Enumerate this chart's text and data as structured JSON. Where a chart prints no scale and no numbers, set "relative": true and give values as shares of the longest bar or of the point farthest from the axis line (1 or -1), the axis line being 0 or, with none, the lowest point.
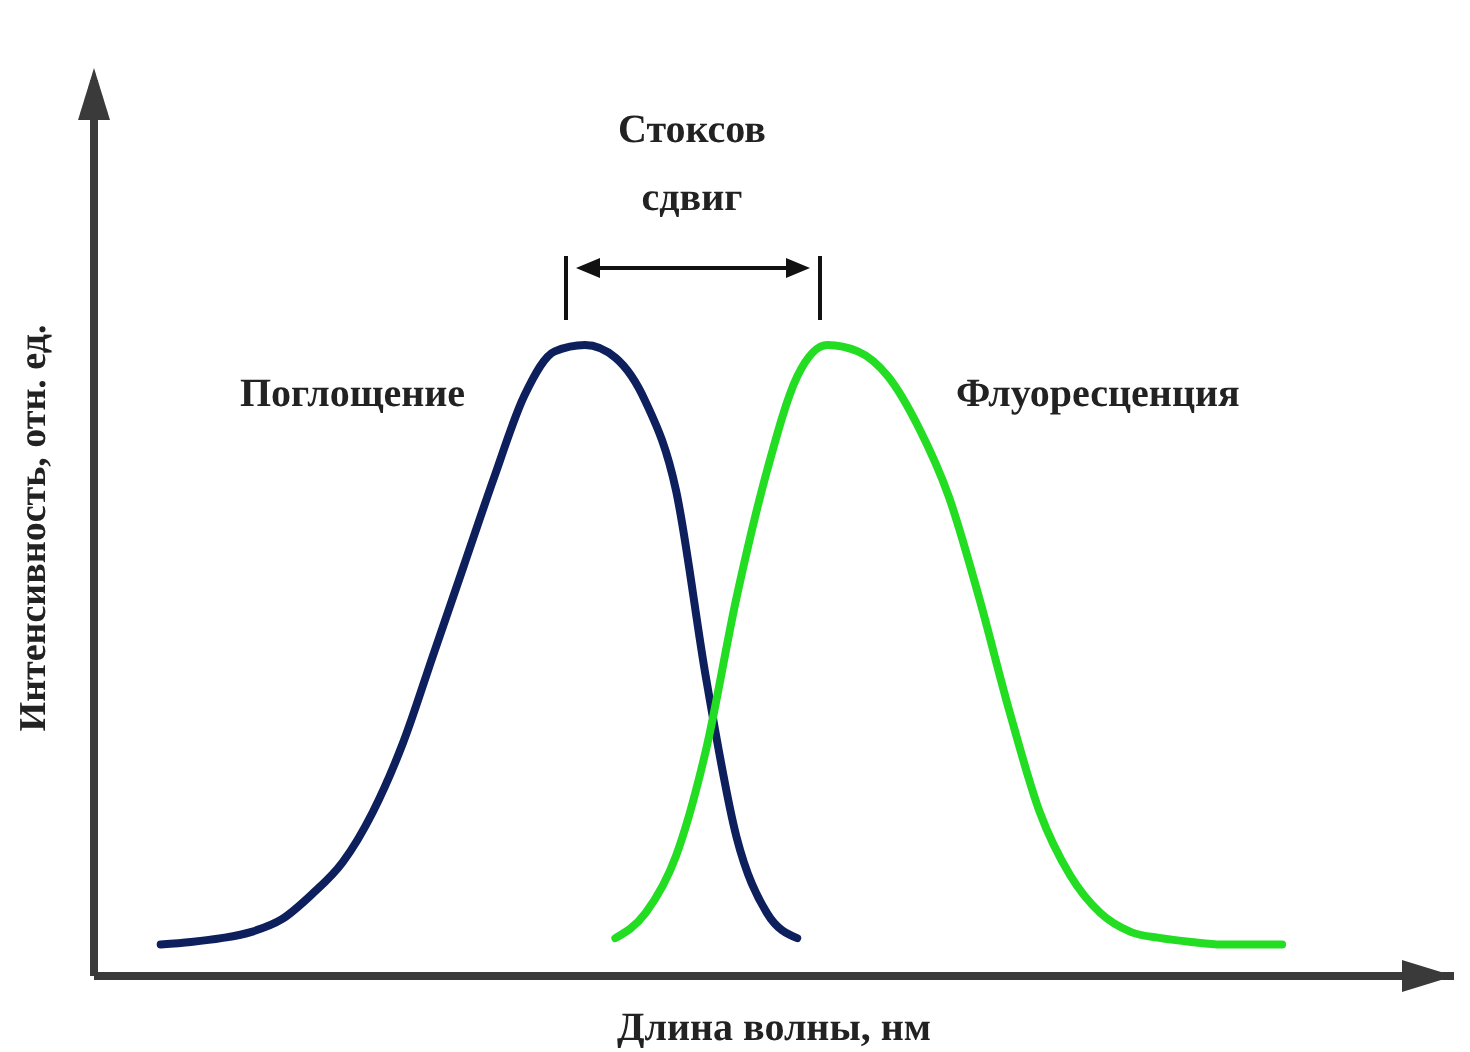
{
  "chart_data": {
    "type": "line",
    "relative": true,
    "xlabel": "Длина волны, нм",
    "ylabel": "Интенсивность, отн. ед.",
    "annotations": [
      "Стоксов сдвиг"
    ],
    "categories": [
      null,
      null,
      null,
      null,
      null,
      null,
      null,
      null,
      null,
      null,
      null,
      null,
      null,
      null,
      null,
      null,
      null,
      null,
      null,
      null,
      null,
      null,
      null,
      null,
      null,
      null,
      null,
      null,
      null,
      null,
      null,
      null,
      null,
      null,
      null,
      null,
      null,
      null
    ],
    "series": [
      {
        "name": "Поглощение",
        "color": "#0d1f5c",
        "values": [
          0.05,
          0.054,
          0.06,
          0.07,
          0.09,
          0.13,
          0.18,
          0.26,
          0.37,
          0.51,
          0.65,
          0.79,
          0.92,
          0.99,
          1,
          0.98,
          0.91,
          0.77,
          0.47,
          0.22,
          0.1,
          0.06,
          null,
          null,
          null,
          null,
          null,
          null,
          null,
          null,
          null,
          null,
          null,
          null,
          null,
          null,
          null,
          null
        ]
      },
      {
        "name": "Флуоресценция",
        "color": "#22dd22",
        "values": [
          null,
          null,
          null,
          null,
          null,
          null,
          null,
          null,
          null,
          null,
          null,
          null,
          null,
          null,
          null,
          0.06,
          0.1,
          0.19,
          0.36,
          0.6,
          0.8,
          0.95,
          1,
          0.99,
          0.95,
          0.87,
          0.76,
          0.6,
          0.42,
          0.26,
          0.16,
          0.1,
          0.07,
          0.06,
          0.054,
          0.05,
          0.05,
          0.05
        ]
      }
    ]
  }
}
